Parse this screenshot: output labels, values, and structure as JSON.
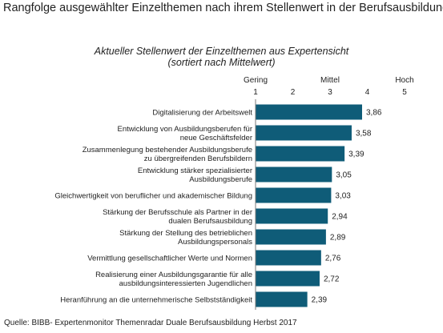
{
  "page": {
    "title": "Rangfolge ausgewählter Einzelthemen nach ihrem Stellenwert in der Berufsausbildung",
    "source": "Quelle: BIBB- Expertenmonitor Themenradar Duale Berufsausbildung Herbst 2017"
  },
  "chart_data": {
    "type": "bar",
    "orientation": "horizontal",
    "title": "Aktueller Stellenwert der Einzelthemen aus Expertensicht",
    "subtitle": "(sortiert nach Mittelwert)",
    "xlim": [
      1,
      5
    ],
    "xticks": [
      1,
      2,
      3,
      4,
      5
    ],
    "scale_labels": [
      {
        "label": "Gering",
        "at": 1
      },
      {
        "label": "Mittel",
        "at": 3
      },
      {
        "label": "Hoch",
        "at": 5
      }
    ],
    "bar_color": "#0f5c78",
    "categories": [
      [
        "Digitalisierung der Arbeitswelt"
      ],
      [
        "Entwicklung von Ausbildungsberufen für",
        "neue Geschäftsfelder"
      ],
      [
        "Zusammenlegung bestehender Ausbildungsberufe",
        "zu übergreifenden Berufsbildern"
      ],
      [
        "Entwicklung stärker spezialisierter",
        "Ausbildungsberufe"
      ],
      [
        "Gleichwertigkeit von beruflicher und akademischer Bildung"
      ],
      [
        "Stärkung der Berufsschule als Partner in der",
        "dualen Berufsausbildung"
      ],
      [
        "Stärkung der Stellung des betrieblichen",
        "Ausbildungspersonals"
      ],
      [
        "Vermittlung gesellschaftlicher Werte und Normen"
      ],
      [
        "Realisierung einer Ausbildungsgarantie für alle",
        "ausbildungsinteressierten Jugendlichen"
      ],
      [
        "Heranführung an die unternehmerische Selbstständigkeit"
      ]
    ],
    "values": [
      3.86,
      3.58,
      3.39,
      3.05,
      3.03,
      2.94,
      2.89,
      2.76,
      2.72,
      2.39
    ],
    "value_labels": [
      "3,86",
      "3,58",
      "3,39",
      "3,05",
      "3,03",
      "2,94",
      "2,89",
      "2,76",
      "2,72",
      "2,39"
    ]
  }
}
